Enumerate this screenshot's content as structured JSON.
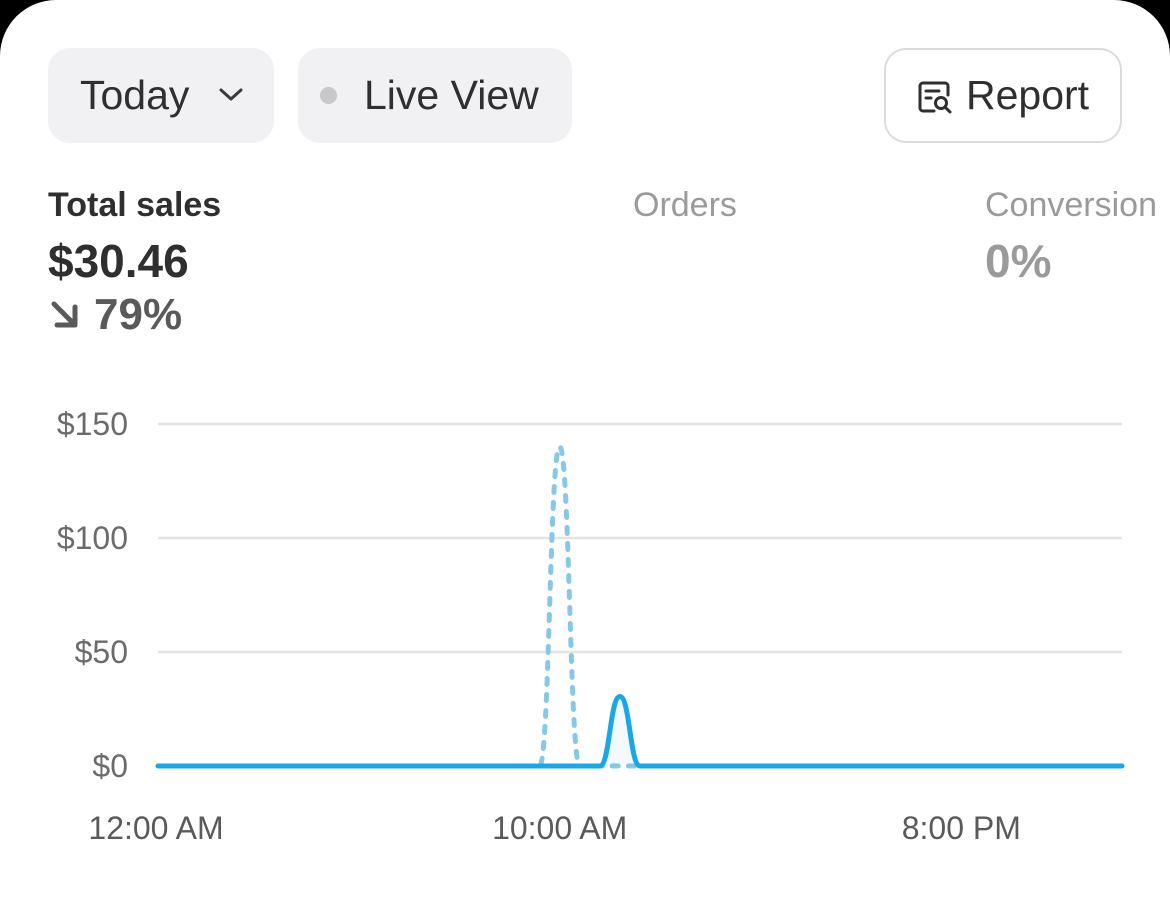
{
  "toolbar": {
    "date_label": "Today",
    "live_label": "Live View",
    "report_label": "Report"
  },
  "metrics": [
    {
      "label": "Total sales",
      "value": "$30.46",
      "change": "79%",
      "change_direction": "down",
      "active": true
    },
    {
      "label": "Orders",
      "value": "",
      "active": false
    },
    {
      "label": "Conversion",
      "value": "0%",
      "active": false
    }
  ],
  "colors": {
    "accent": "#1aa7e8",
    "comparison": "#86c8e6",
    "gridline": "#e4e4e7",
    "text": "#2f2f2f",
    "muted": "#9a9a9a"
  },
  "chart_data": {
    "type": "line",
    "x_unit": "hour",
    "xlim": [
      0,
      24
    ],
    "ylim": [
      0,
      150
    ],
    "y_ticks": [
      0,
      50,
      100,
      150
    ],
    "y_tick_labels": [
      "$0",
      "$50",
      "$100",
      "$150"
    ],
    "x_ticks": [
      0,
      10,
      20
    ],
    "x_tick_labels": [
      "12:00 AM",
      "10:00 AM",
      "8:00 PM"
    ],
    "grid": true,
    "series": [
      {
        "style": "solid",
        "x": [
          0,
          9,
          10,
          10.5,
          11,
          11.5,
          12,
          12.5,
          13,
          24
        ],
        "y": [
          0,
          0,
          0,
          0,
          0,
          30.46,
          0,
          0,
          0,
          0
        ]
      },
      {
        "style": "dotted",
        "x": [
          0,
          9,
          9.5,
          10,
          10.5,
          11,
          11.5,
          12,
          24
        ],
        "y": [
          0,
          0,
          0,
          140,
          0,
          0,
          0,
          0,
          0
        ]
      }
    ]
  }
}
